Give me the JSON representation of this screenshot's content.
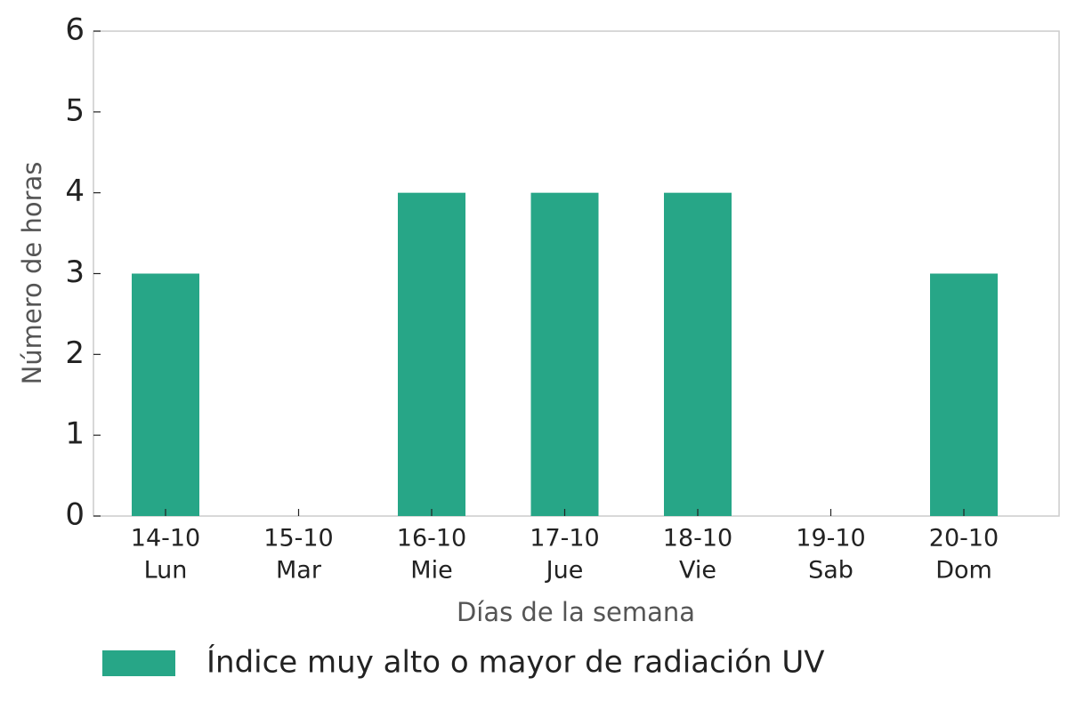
{
  "chart_data": {
    "type": "bar",
    "categories": [
      [
        "14-10",
        "Lun"
      ],
      [
        "15-10",
        "Mar"
      ],
      [
        "16-10",
        "Mie"
      ],
      [
        "17-10",
        "Jue"
      ],
      [
        "18-10",
        "Vie"
      ],
      [
        "19-10",
        "Sab"
      ],
      [
        "20-10",
        "Dom"
      ]
    ],
    "values": [
      3,
      0,
      4,
      4,
      4,
      0,
      3
    ],
    "color": "#27a687",
    "series_name": "Índice muy alto o mayor de radiación UV",
    "x_label": "Días de la semana",
    "y_label": "Número de horas",
    "ylim": [
      0,
      6
    ],
    "yticks": [
      0,
      1,
      2,
      3,
      4,
      5,
      6
    ],
    "grid": false
  }
}
